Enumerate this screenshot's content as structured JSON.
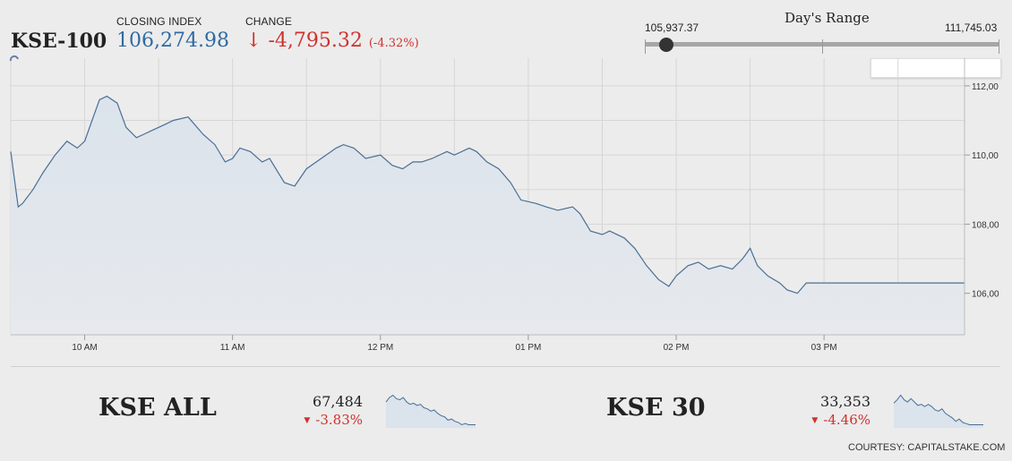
{
  "header": {
    "index_name": "KSE-100",
    "closing_label": "CLOSING INDEX",
    "closing_value": "106,274.98",
    "change_label": "CHANGE",
    "change_arrow": "↓",
    "change_value": "-4,795.32",
    "change_pct": "(-4.32%)",
    "up_color": "#2f6aa4",
    "down_color": "#d0312d"
  },
  "days_range": {
    "title": "Day's Range",
    "low": "105,937.37",
    "high": "111,745.03",
    "current_fraction": 0.06
  },
  "chart_data": {
    "type": "area",
    "x_tick_labels": [
      "10 AM",
      "11 AM",
      "12 PM",
      "01 PM",
      "02 PM",
      "03 PM"
    ],
    "y_tick_labels": [
      "112,00",
      "110,00",
      "108,00",
      "106,00"
    ],
    "y_ticks": [
      112000,
      110000,
      108000,
      106000
    ],
    "ylim": [
      104800,
      112800
    ],
    "xlim": [
      9.5,
      15.95
    ],
    "grid": true,
    "x": [
      9.5,
      9.55,
      9.58,
      9.65,
      9.72,
      9.8,
      9.88,
      9.95,
      10.0,
      10.05,
      10.1,
      10.15,
      10.22,
      10.28,
      10.35,
      10.4,
      10.45,
      10.5,
      10.55,
      10.6,
      10.7,
      10.8,
      10.88,
      10.95,
      11.0,
      11.05,
      11.12,
      11.2,
      11.25,
      11.35,
      11.42,
      11.5,
      11.6,
      11.7,
      11.75,
      11.82,
      11.9,
      12.0,
      12.08,
      12.15,
      12.22,
      12.28,
      12.35,
      12.45,
      12.5,
      12.6,
      12.65,
      12.72,
      12.8,
      12.88,
      12.95,
      13.05,
      13.12,
      13.2,
      13.3,
      13.35,
      13.42,
      13.5,
      13.55,
      13.65,
      13.72,
      13.8,
      13.88,
      13.95,
      14.0,
      14.08,
      14.15,
      14.22,
      14.3,
      14.38,
      14.45,
      14.5,
      14.55,
      14.62,
      14.7,
      14.75,
      14.82,
      14.88,
      14.95,
      15.0,
      15.05,
      15.12,
      15.2,
      15.25,
      15.3,
      15.38,
      15.45,
      15.5,
      15.52,
      15.6,
      15.7,
      15.8,
      15.9,
      15.95
    ],
    "values": [
      110100,
      108500,
      108600,
      109000,
      109500,
      110000,
      110400,
      110200,
      110400,
      111000,
      111600,
      111700,
      111500,
      110800,
      110500,
      110600,
      110700,
      110800,
      110900,
      111000,
      111100,
      110600,
      110300,
      109800,
      109900,
      110200,
      110100,
      109800,
      109900,
      109200,
      109100,
      109600,
      109900,
      110200,
      110300,
      110200,
      109900,
      110000,
      109700,
      109600,
      109800,
      109800,
      109900,
      110100,
      110000,
      110200,
      110100,
      109800,
      109600,
      109200,
      108700,
      108600,
      108500,
      108400,
      108500,
      108300,
      107800,
      107700,
      107800,
      107600,
      107300,
      106800,
      106400,
      106200,
      106500,
      106800,
      106900,
      106700,
      106800,
      106700,
      107000,
      107300,
      106800,
      106500,
      106300,
      106100,
      106000,
      106300,
      106300,
      106300,
      106300,
      106300,
      106300,
      106300,
      106300,
      106300,
      106300,
      106300,
      106300,
      106300,
      106300,
      106300,
      106300,
      106300
    ],
    "line_color": "#4a6f95",
    "fill_color": "#dde4ec"
  },
  "sub_indices": [
    {
      "name": "KSE ALL",
      "value": "67,484",
      "change": "-3.83%",
      "spark": [
        60,
        64,
        66,
        63,
        62,
        64,
        60,
        58,
        59,
        57,
        58,
        55,
        54,
        52,
        53,
        50,
        48,
        47,
        44,
        45,
        43,
        42,
        40,
        41,
        40,
        40,
        40
      ]
    },
    {
      "name": "KSE 30",
      "value": "33,353",
      "change": "-4.46%",
      "spark": [
        59,
        62,
        66,
        62,
        60,
        63,
        60,
        57,
        58,
        56,
        58,
        56,
        53,
        52,
        54,
        50,
        48,
        46,
        43,
        45,
        42,
        41,
        40,
        40,
        40,
        40,
        40
      ]
    }
  ],
  "footer": {
    "courtesy": "COURTESY: CAPITALSTAKE.COM"
  }
}
